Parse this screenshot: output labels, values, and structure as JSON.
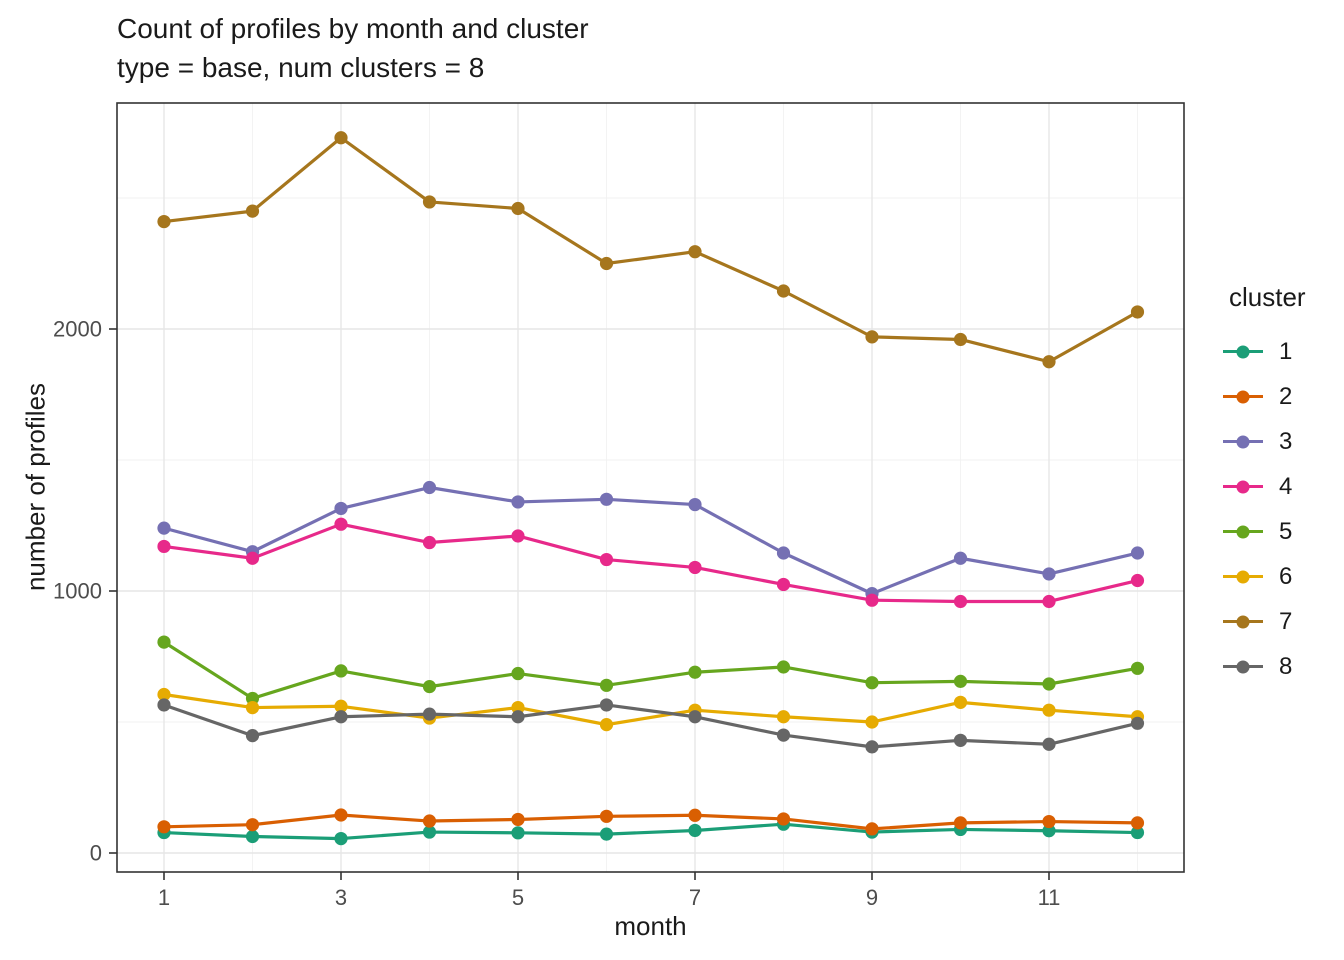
{
  "title": "Count of profiles by month and cluster",
  "subtitle": "type = base, num clusters = 8",
  "colors": {
    "background": "#FFFFFF",
    "panel_border": "#333333",
    "gridline_major": "#E6E6E6",
    "gridline_minor": "#F2F2F2",
    "tick_mark": "#333333",
    "tick_label": "#4D4D4D",
    "text": "#1A1A1A"
  },
  "chart_data": {
    "type": "line",
    "title": "Count of profiles by month and cluster",
    "subtitle": "type = base, num clusters = 8",
    "xlabel": "month",
    "ylabel": "number of profiles",
    "legend_title": "cluster",
    "legend_position": "right",
    "grid": "major+minor",
    "x": [
      1,
      2,
      3,
      4,
      5,
      6,
      7,
      8,
      9,
      10,
      11,
      12
    ],
    "x_ticks": [
      1,
      3,
      5,
      7,
      9,
      11
    ],
    "y_ticks": [
      0,
      1000,
      2000
    ],
    "y_minor_gridlines": [
      500,
      1500,
      2500
    ],
    "xlim": [
      0.45,
      12.55
    ],
    "ylim": [
      -65,
      2865
    ],
    "series": [
      {
        "name": "1",
        "color": "#1B9E77",
        "values": [
          78,
          63,
          55,
          80,
          77,
          72,
          86,
          110,
          80,
          90,
          85,
          78
        ]
      },
      {
        "name": "2",
        "color": "#D95F02",
        "values": [
          100,
          108,
          145,
          122,
          128,
          140,
          144,
          130,
          92,
          115,
          120,
          115
        ]
      },
      {
        "name": "3",
        "color": "#7570B3",
        "values": [
          1240,
          1150,
          1315,
          1395,
          1340,
          1350,
          1330,
          1145,
          990,
          1125,
          1065,
          1145
        ]
      },
      {
        "name": "4",
        "color": "#E7298A",
        "values": [
          1170,
          1125,
          1255,
          1185,
          1210,
          1120,
          1090,
          1025,
          965,
          960,
          960,
          1040
        ]
      },
      {
        "name": "5",
        "color": "#66A61E",
        "values": [
          805,
          590,
          695,
          635,
          685,
          640,
          690,
          710,
          650,
          655,
          645,
          705
        ]
      },
      {
        "name": "6",
        "color": "#E6AB02",
        "values": [
          605,
          555,
          560,
          515,
          555,
          490,
          545,
          520,
          500,
          575,
          545,
          520
        ]
      },
      {
        "name": "7",
        "color": "#A6761D",
        "values": [
          2410,
          2450,
          2730,
          2485,
          2460,
          2250,
          2295,
          2145,
          1970,
          1960,
          1875,
          2065
        ]
      },
      {
        "name": "8",
        "color": "#666666",
        "values": [
          565,
          448,
          520,
          530,
          520,
          565,
          520,
          450,
          405,
          430,
          415,
          495
        ]
      }
    ]
  }
}
